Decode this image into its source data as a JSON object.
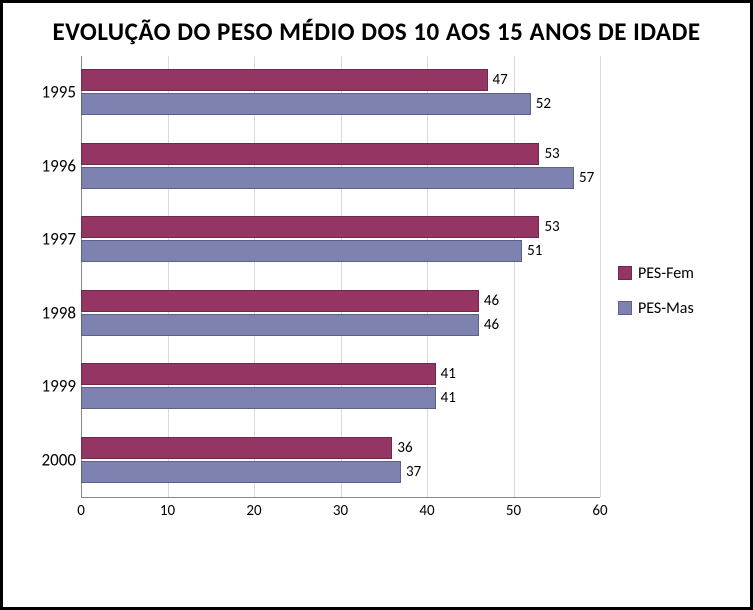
{
  "title": "EVOLUÇÃO DO PESO MÉDIO DOS 10 AOS 15 ANOS DE IDADE",
  "title_fontsize": 25,
  "title_weight": "bold",
  "background_color": "#ffffff",
  "border_color": "#000000",
  "chart": {
    "type": "bar-horizontal-grouped",
    "xlim": [
      0,
      60
    ],
    "xtick_step": 10,
    "xticks": [
      0,
      10,
      20,
      30,
      40,
      50,
      60
    ],
    "xtick_fontsize": 15,
    "grid_color": "#d9d9d9",
    "axis_color": "#888888",
    "categories": [
      "1995",
      "1996",
      "1997",
      "1998",
      "1999",
      "2000"
    ],
    "ylabel_fontsize": 17,
    "bar_group_height_ratio": 0.62,
    "bar_gap_ratio": 0.025,
    "value_label_fontsize": 15,
    "series": [
      {
        "name": "PES-Fem",
        "color": "#953563",
        "values": [
          47,
          53,
          53,
          46,
          41,
          36
        ]
      },
      {
        "name": "PES-Mas",
        "color": "#7d82b0",
        "values": [
          52,
          57,
          51,
          46,
          41,
          37
        ]
      }
    ],
    "legend_fontsize": 16
  }
}
